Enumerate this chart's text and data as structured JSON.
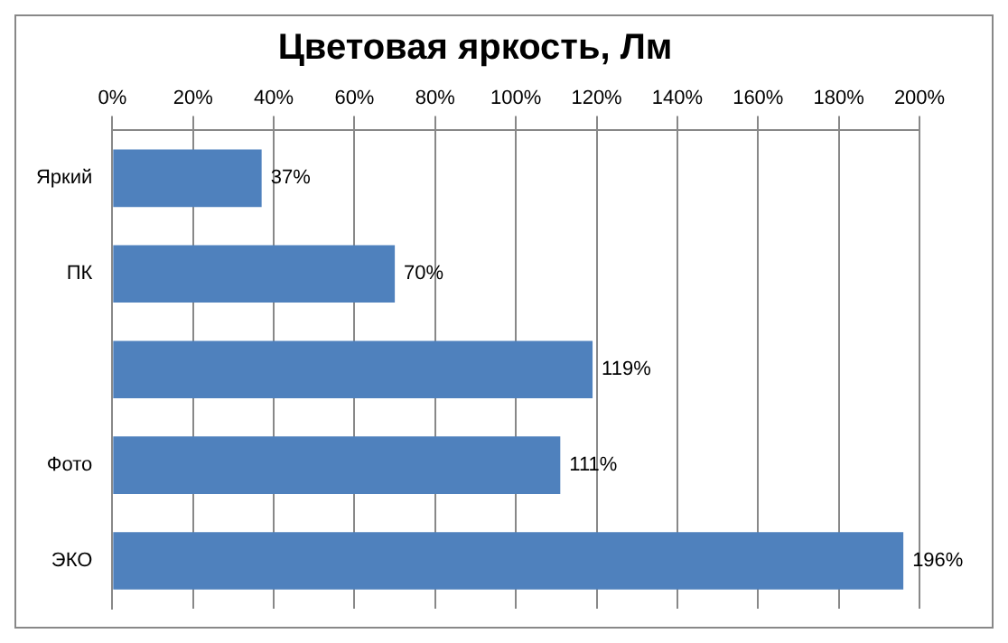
{
  "chart_data": {
    "type": "bar",
    "orientation": "horizontal",
    "title": "Цветовая яркость, Лм",
    "categories": [
      "Яркий",
      "ПК",
      null,
      "Фото",
      "ЭКО"
    ],
    "values": [
      37,
      70,
      119,
      111,
      196
    ],
    "color": "#4f81bd",
    "value_labels": [
      "37%",
      "70%",
      "119%",
      "111%",
      "196%"
    ],
    "xlim": [
      0,
      200
    ],
    "xticks": [
      {
        "value": 0,
        "label": "0%"
      },
      {
        "value": 20,
        "label": "20%"
      },
      {
        "value": 40,
        "label": "40%"
      },
      {
        "value": 60,
        "label": "60%"
      },
      {
        "value": 80,
        "label": "80%"
      },
      {
        "value": 100,
        "label": "100%"
      },
      {
        "value": 120,
        "label": "120%"
      },
      {
        "value": 140,
        "label": "140%"
      },
      {
        "value": 160,
        "label": "160%"
      },
      {
        "value": 180,
        "label": "180%"
      },
      {
        "value": 200,
        "label": "200%"
      }
    ],
    "grid": "x",
    "legend": false
  }
}
